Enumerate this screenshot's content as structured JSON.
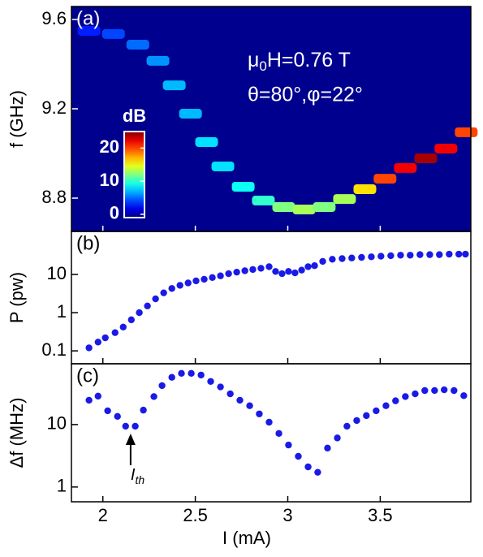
{
  "chart_data": [
    {
      "type": "heatmap-trace",
      "panel_label": "(a)",
      "ylabel": "f (GHz)",
      "annotation": {
        "line1": [
          "μ",
          "0",
          "H=0.76 T"
        ],
        "line2": "θ=80°,φ=22°"
      },
      "background": "#00008f",
      "x": [
        1.925,
        2.057,
        2.189,
        2.298,
        2.386,
        2.474,
        2.561,
        2.649,
        2.759,
        2.868,
        2.978,
        3.088,
        3.197,
        3.307,
        3.417,
        3.526,
        3.636,
        3.746,
        3.855,
        3.965
      ],
      "y": [
        9.549,
        9.535,
        9.487,
        9.415,
        9.305,
        9.178,
        9.051,
        8.942,
        8.851,
        8.789,
        8.76,
        8.749,
        8.76,
        8.796,
        8.84,
        8.887,
        8.935,
        8.978,
        9.022,
        9.095
      ],
      "z": [
        3,
        4,
        5,
        6,
        7,
        7,
        8,
        8,
        9,
        10,
        12,
        13,
        12,
        13,
        16,
        20,
        22,
        24,
        22,
        20
      ],
      "xlim": [
        1.83,
        3.99
      ],
      "ylim": [
        8.651,
        9.658
      ],
      "yticks": [
        8.8,
        9.2,
        9.6
      ],
      "colorbar": {
        "label": "dB",
        "lim": [
          -1,
          25
        ],
        "ticks": [
          0,
          10,
          20
        ]
      }
    },
    {
      "type": "scatter",
      "panel_label": "(b)",
      "ylabel": "P (pw)",
      "log_y": true,
      "color": "#1a1ae6",
      "x": [
        1.925,
        1.974,
        2.013,
        2.066,
        2.11,
        2.154,
        2.197,
        2.241,
        2.285,
        2.329,
        2.373,
        2.417,
        2.461,
        2.504,
        2.548,
        2.592,
        2.636,
        2.68,
        2.724,
        2.768,
        2.811,
        2.855,
        2.899,
        2.934,
        2.969,
        3.004,
        3.039,
        3.075,
        3.11,
        3.145,
        3.189,
        3.241,
        3.294,
        3.346,
        3.399,
        3.452,
        3.504,
        3.557,
        3.61,
        3.662,
        3.715,
        3.768,
        3.82,
        3.873,
        3.925,
        3.961
      ],
      "values": [
        0.12,
        0.17,
        0.22,
        0.3,
        0.42,
        0.65,
        1.0,
        1.5,
        2.3,
        3.3,
        4.3,
        5.2,
        6,
        6.8,
        7.5,
        8.3,
        9.2,
        10.5,
        11.5,
        12.5,
        13.5,
        14.5,
        16,
        12,
        10.5,
        12,
        11,
        13,
        16,
        17,
        22,
        25,
        26,
        27,
        28,
        29,
        30,
        31,
        32,
        32,
        33,
        33,
        33,
        34,
        34,
        34
      ],
      "xlim": [
        1.83,
        3.99
      ],
      "ylim": [
        0.046,
        134
      ],
      "yticks": [
        0.1,
        1,
        10
      ]
    },
    {
      "type": "scatter",
      "panel_label": "(c)",
      "ylabel": "Δf (MHz)",
      "xlabel": "I (mA)",
      "log_y": true,
      "color": "#1a1ae6",
      "annotation": {
        "text": "I",
        "subscript": "th",
        "x": 2.15
      },
      "x": [
        1.925,
        1.974,
        2.026,
        2.079,
        2.123,
        2.175,
        2.219,
        2.276,
        2.32,
        2.373,
        2.425,
        2.478,
        2.531,
        2.583,
        2.636,
        2.689,
        2.741,
        2.794,
        2.846,
        2.899,
        2.952,
        3.004,
        3.057,
        3.11,
        3.162,
        3.215,
        3.268,
        3.32,
        3.373,
        3.425,
        3.478,
        3.531,
        3.583,
        3.636,
        3.689,
        3.741,
        3.794,
        3.846,
        3.899,
        3.952
      ],
      "values": [
        24.5,
        28.5,
        16.6,
        13.5,
        9.4,
        9.4,
        17,
        28,
        42,
        57,
        66,
        66,
        62,
        49,
        40,
        31,
        24.5,
        20,
        14.8,
        10.9,
        7.2,
        4.7,
        3.1,
        2.1,
        1.72,
        4.2,
        6.1,
        9.4,
        11.6,
        13.9,
        16.6,
        20,
        24,
        28,
        31,
        35,
        35.1,
        36,
        35,
        29
      ],
      "xlim": [
        1.83,
        3.99
      ],
      "ylim": [
        0.58,
        94
      ],
      "yticks": [
        1,
        10
      ],
      "xticks": [
        2,
        2.5,
        3,
        3.5
      ]
    }
  ]
}
